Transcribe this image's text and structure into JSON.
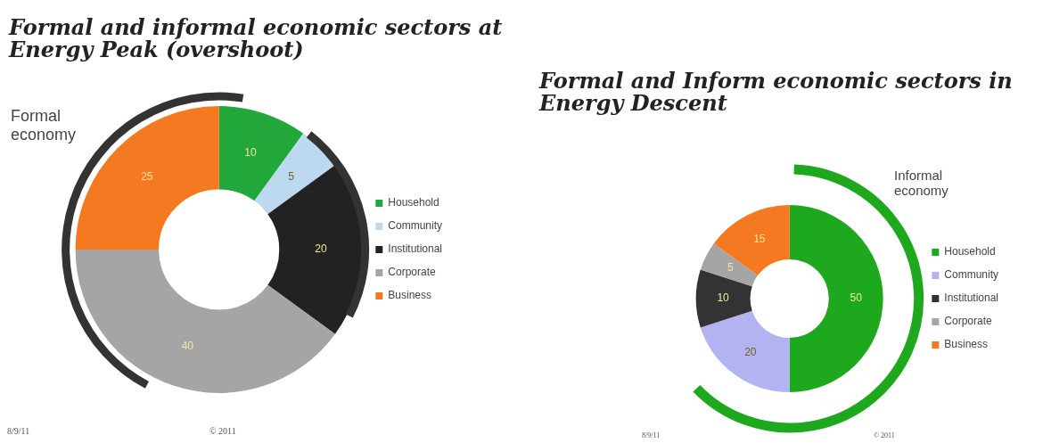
{
  "chart_data": [
    {
      "type": "donut",
      "title": "Formal and informal economic sectors at Energy Peak (overshoot)",
      "categories": [
        "Household",
        "Community",
        "Institutional",
        "Corporate",
        "Business"
      ],
      "values": [
        10,
        5,
        20,
        40,
        25
      ],
      "colors": [
        "#22a83a",
        "#bcd9ef",
        "#222222",
        "#a5a5a5",
        "#f47920"
      ],
      "data_labels": true,
      "legend": "right",
      "annotations": [
        "Formal economy",
        "8/9/11",
        "© 2011"
      ]
    },
    {
      "type": "donut",
      "title": "Formal and Inform economic sectors in Energy Descent",
      "categories": [
        "Household",
        "Community",
        "Institutional",
        "Corporate",
        "Business"
      ],
      "values": [
        50,
        20,
        10,
        5,
        15
      ],
      "colors": [
        "#1ea81e",
        "#b3b3f2",
        "#333333",
        "#a5a5a5",
        "#f47920"
      ],
      "data_labels": true,
      "legend": "right",
      "annotations": [
        "Informal economy",
        "8/9/11",
        "© 2011"
      ]
    }
  ]
}
